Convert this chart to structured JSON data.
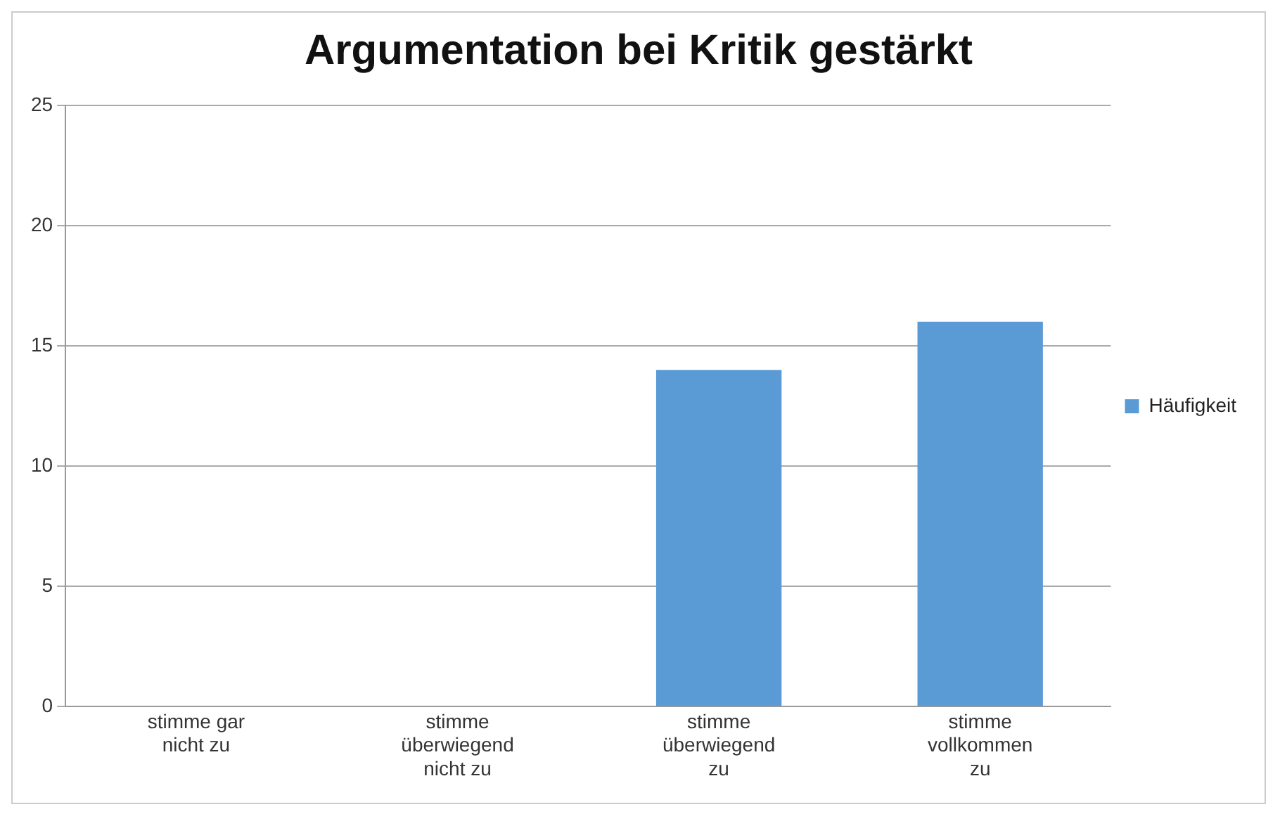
{
  "chart_data": {
    "type": "bar",
    "title": "Argumentation bei Kritik gestärkt",
    "categories": [
      "stimme gar nicht zu",
      "stimme überwiegend nicht zu",
      "stimme überwiegend zu",
      "stimme vollkommen zu"
    ],
    "series": [
      {
        "name": "Häufigkeit",
        "color": "#5b9bd5",
        "values": [
          0,
          0,
          14,
          16
        ]
      }
    ],
    "ylim": [
      0,
      25
    ],
    "yticks": [
      0,
      5,
      10,
      15,
      20,
      25
    ],
    "grid": "y",
    "legend": "right"
  }
}
